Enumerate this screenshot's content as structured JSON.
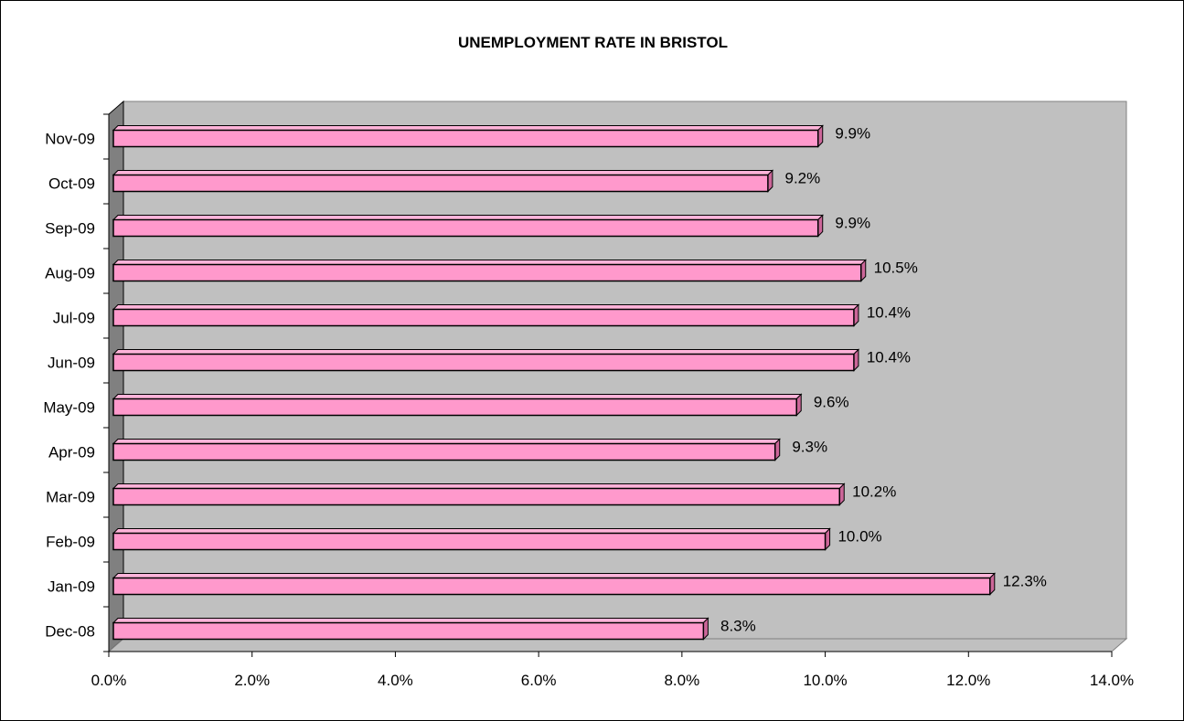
{
  "chart_data": {
    "type": "bar",
    "orientation": "horizontal",
    "title": "UNEMPLOYMENT RATE IN BRISTOL",
    "categories": [
      "Nov-09",
      "Oct-09",
      "Sep-09",
      "Aug-09",
      "Jul-09",
      "Jun-09",
      "May-09",
      "Apr-09",
      "Mar-09",
      "Feb-09",
      "Jan-09",
      "Dec-08"
    ],
    "values": [
      9.9,
      9.2,
      9.9,
      10.5,
      10.4,
      10.4,
      9.6,
      9.3,
      10.2,
      10.0,
      12.3,
      8.3
    ],
    "data_labels": [
      "9.9%",
      "9.2%",
      "9.9%",
      "10.5%",
      "10.4%",
      "10.4%",
      "9.6%",
      "9.3%",
      "10.2%",
      "10.0%",
      "12.3%",
      "8.3%"
    ],
    "xlim": [
      0,
      14
    ],
    "x_ticks": [
      "0.0%",
      "2.0%",
      "4.0%",
      "6.0%",
      "8.0%",
      "10.0%",
      "12.0%",
      "14.0%"
    ],
    "xlabel": "",
    "ylabel": "",
    "grid": false,
    "legend": "none",
    "style": "3d",
    "colors": {
      "bar_face": "#ff99cc",
      "bar_top": "#ffb3d9",
      "bar_side": "#cc6699",
      "plot_background": "#c0c0c0",
      "wall_side": "#808080"
    }
  }
}
